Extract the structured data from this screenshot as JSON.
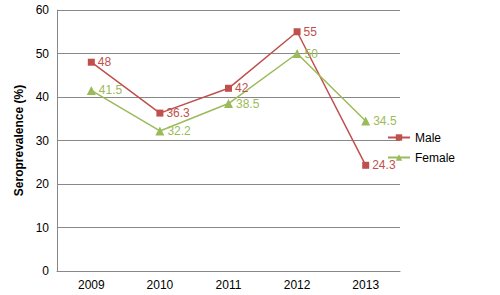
{
  "chart_data": {
    "type": "line",
    "y_label": "Seroprevalence (%)",
    "categories": [
      "2009",
      "2010",
      "2011",
      "2012",
      "2013"
    ],
    "series": [
      {
        "name": "Male",
        "color": "#c0504d",
        "marker": "square",
        "values": [
          48,
          36.3,
          42,
          55,
          24.3
        ]
      },
      {
        "name": "Female",
        "color": "#9bbb59",
        "marker": "triangle",
        "values": [
          41.5,
          32.2,
          38.5,
          50,
          34.5
        ]
      }
    ],
    "ylim": [
      0,
      60
    ],
    "yticks": [
      0,
      10,
      20,
      30,
      40,
      50,
      60
    ],
    "grid": true,
    "legend": "right",
    "data_labels": true
  }
}
